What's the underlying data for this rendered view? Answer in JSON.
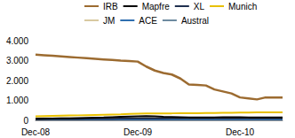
{
  "chart_data": {
    "type": "line",
    "categories": [
      "Dec-08",
      null,
      null,
      null,
      null,
      null,
      null,
      null,
      null,
      null,
      null,
      null,
      "Dec-09",
      null,
      null,
      null,
      null,
      null,
      null,
      null,
      null,
      null,
      null,
      null,
      "Dec-10",
      null,
      null,
      null,
      null,
      null
    ],
    "series": [
      {
        "name": "IRB",
        "color": "#9c6b30",
        "values": [
          3300,
          3270,
          3240,
          3210,
          3180,
          3150,
          3120,
          3090,
          3060,
          3030,
          3000,
          2980,
          2950,
          2700,
          2500,
          2380,
          2300,
          2100,
          1800,
          1780,
          1750,
          1550,
          1450,
          1350,
          1150,
          1100,
          1050,
          1150,
          1150,
          1150
        ]
      },
      {
        "name": "Mapfre",
        "color": "#000000",
        "values": [
          80,
          85,
          90,
          95,
          100,
          110,
          120,
          130,
          140,
          160,
          180,
          190,
          200,
          210,
          200,
          180,
          170,
          160,
          150,
          150,
          150,
          150,
          160,
          160,
          160,
          150,
          150,
          150,
          150,
          150
        ]
      },
      {
        "name": "XL",
        "color": "#1f2f4f",
        "values": [
          60,
          60,
          65,
          65,
          70,
          70,
          75,
          75,
          80,
          80,
          85,
          85,
          90,
          90,
          90,
          90,
          95,
          95,
          95,
          95,
          100,
          100,
          100,
          100,
          100,
          100,
          100,
          100,
          100,
          100
        ]
      },
      {
        "name": "Munich",
        "color": "#e8c000",
        "values": [
          200,
          210,
          220,
          230,
          240,
          250,
          260,
          270,
          280,
          290,
          300,
          320,
          330,
          340,
          345,
          350,
          350,
          355,
          360,
          360,
          365,
          370,
          375,
          380,
          385,
          390,
          395,
          400,
          400,
          400
        ]
      },
      {
        "name": "JM",
        "color": "#d8c9a0",
        "values": [
          100,
          100,
          100,
          100,
          105,
          105,
          105,
          110,
          110,
          110,
          110,
          115,
          115,
          115,
          115,
          120,
          120,
          120,
          120,
          120,
          125,
          125,
          125,
          125,
          125,
          125,
          125,
          125,
          125,
          125
        ]
      },
      {
        "name": "ACE",
        "color": "#2f6fb0",
        "values": [
          40,
          40,
          40,
          40,
          40,
          40,
          40,
          40,
          40,
          40,
          40,
          40,
          40,
          40,
          40,
          40,
          40,
          40,
          40,
          40,
          40,
          40,
          40,
          40,
          40,
          40,
          40,
          40,
          40,
          40
        ]
      },
      {
        "name": "Austral",
        "color": "#6e8ba0",
        "values": [
          60,
          60,
          60,
          60,
          60,
          60,
          60,
          60,
          60,
          60,
          60,
          60,
          60,
          60,
          60,
          60,
          60,
          60,
          60,
          60,
          60,
          60,
          60,
          60,
          60,
          60,
          60,
          60,
          60,
          60
        ]
      }
    ],
    "ylim": [
      0,
      4000
    ],
    "yticks": [
      0,
      {
        "value": 1000,
        "label": "1.000"
      },
      {
        "value": 2000,
        "label": "2.000"
      },
      {
        "value": 3000,
        "label": "3.000"
      },
      {
        "value": 4000,
        "label": "4.000"
      }
    ],
    "grid": false,
    "legend": "top"
  }
}
